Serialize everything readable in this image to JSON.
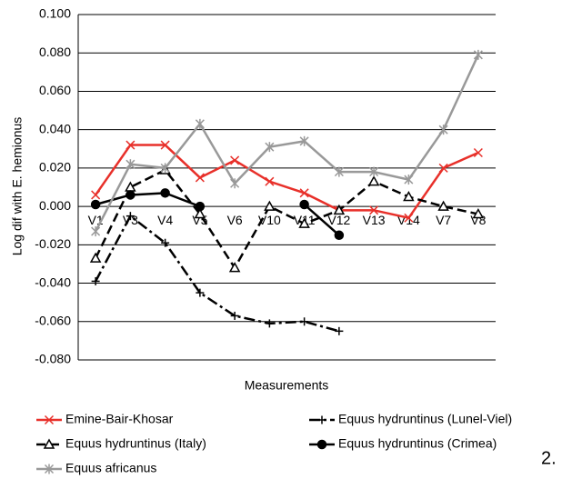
{
  "chart_data": {
    "type": "line",
    "y_label": "Log dif with E. hemionus",
    "x_label": "Measurements",
    "figure_number": "2.",
    "categories": [
      "V1",
      "V3",
      "V4",
      "V5",
      "V6",
      "V10",
      "V11",
      "V12",
      "V13",
      "V14",
      "V7",
      "V8"
    ],
    "ylim": [
      -0.08,
      0.1
    ],
    "yticks": [
      {
        "value": 0.1,
        "label": "0.100"
      },
      {
        "value": 0.08,
        "label": "0.080"
      },
      {
        "value": 0.06,
        "label": "0.060"
      },
      {
        "value": 0.04,
        "label": "0.040"
      },
      {
        "value": 0.02,
        "label": "0.020"
      },
      {
        "value": 0,
        "label": "0.000"
      },
      {
        "value": -0.02,
        "label": "-0.020"
      },
      {
        "value": -0.04,
        "label": "-0.040"
      },
      {
        "value": -0.06,
        "label": "-0.060"
      },
      {
        "value": -0.08,
        "label": "-0.080"
      }
    ],
    "grid": true,
    "series": [
      {
        "name": "Emine-Bair-Khosar",
        "color": "#e8302a",
        "dash": "solid",
        "marker": "x",
        "values": [
          0.006,
          0.032,
          0.032,
          0.015,
          0.024,
          0.013,
          0.007,
          -0.002,
          -0.002,
          -0.006,
          0.02,
          0.028
        ]
      },
      {
        "name": "Equus hydruntinus (Lunel-Viel)",
        "color": "#000000",
        "dash": "dashdot",
        "marker": "plus",
        "values": [
          -0.039,
          -0.005,
          -0.019,
          -0.045,
          -0.057,
          -0.061,
          -0.06,
          -0.065,
          null,
          null,
          null,
          null
        ]
      },
      {
        "name": "Equus hydruntinus (Italy)",
        "color": "#000000",
        "dash": "dash",
        "marker": "triangle",
        "values": [
          -0.027,
          0.01,
          0.019,
          -0.004,
          -0.032,
          0.0,
          -0.009,
          -0.002,
          0.013,
          0.005,
          0.0,
          -0.004
        ]
      },
      {
        "name": "Equus hydruntinus (Crimea)",
        "color": "#000000",
        "dash": "solid",
        "marker": "circle",
        "values": [
          0.001,
          0.006,
          0.007,
          0.0,
          null,
          null,
          0.001,
          -0.015,
          null,
          null,
          null,
          null
        ]
      },
      {
        "name": "Equus africanus",
        "color": "#999999",
        "dash": "solid",
        "marker": "asterisk",
        "values": [
          -0.013,
          0.022,
          0.02,
          0.043,
          0.012,
          0.031,
          0.034,
          0.018,
          0.018,
          0.014,
          0.04,
          0.079
        ]
      }
    ]
  }
}
